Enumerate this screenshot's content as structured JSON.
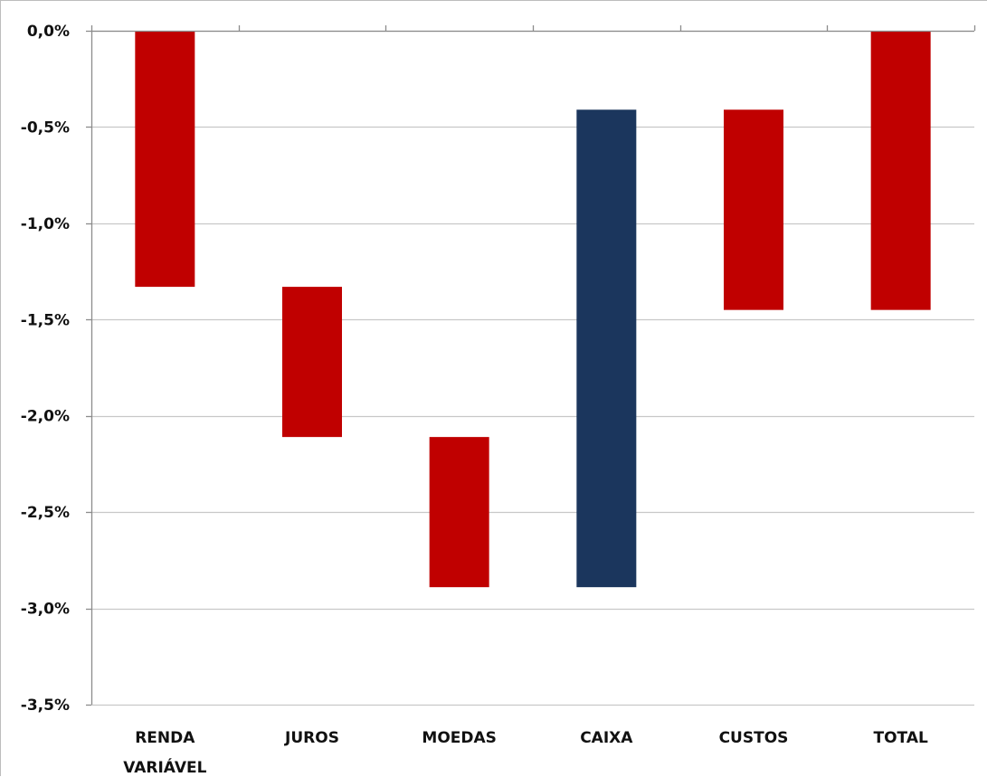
{
  "chart_data": {
    "type": "bar",
    "subtype": "waterfall",
    "title": "",
    "xlabel": "",
    "ylabel": "",
    "ylim": [
      -3.5,
      0.0
    ],
    "y_ticks": [
      "0,0%",
      "-0,5%",
      "-1,0%",
      "-1,5%",
      "-2,0%",
      "-2,5%",
      "-3,0%",
      "-3,5%"
    ],
    "y_tick_values": [
      0.0,
      -0.5,
      -1.0,
      -1.5,
      -2.0,
      -2.5,
      -3.0,
      -3.5
    ],
    "grid": true,
    "legend": "none",
    "categories": [
      {
        "label_lines": [
          "RENDA",
          "VARIÁVEL"
        ],
        "start": 0.0,
        "end": -1.33,
        "color": "#c00000"
      },
      {
        "label_lines": [
          "JUROS"
        ],
        "start": -1.33,
        "end": -2.11,
        "color": "#c00000"
      },
      {
        "label_lines": [
          "MOEDAS"
        ],
        "start": -2.11,
        "end": -2.89,
        "color": "#c00000"
      },
      {
        "label_lines": [
          "CAIXA"
        ],
        "start": -2.89,
        "end": -0.41,
        "color": "#1b365d"
      },
      {
        "label_lines": [
          "CUSTOS"
        ],
        "start": -0.41,
        "end": -1.45,
        "color": "#c00000"
      },
      {
        "label_lines": [
          "TOTAL"
        ],
        "start": 0.0,
        "end": -1.45,
        "color": "#c00000"
      }
    ],
    "colors": {
      "negative": "#c00000",
      "positive": "#1b365d",
      "gridline": "#c8c8c8",
      "axis": "#8c8c8c"
    }
  }
}
